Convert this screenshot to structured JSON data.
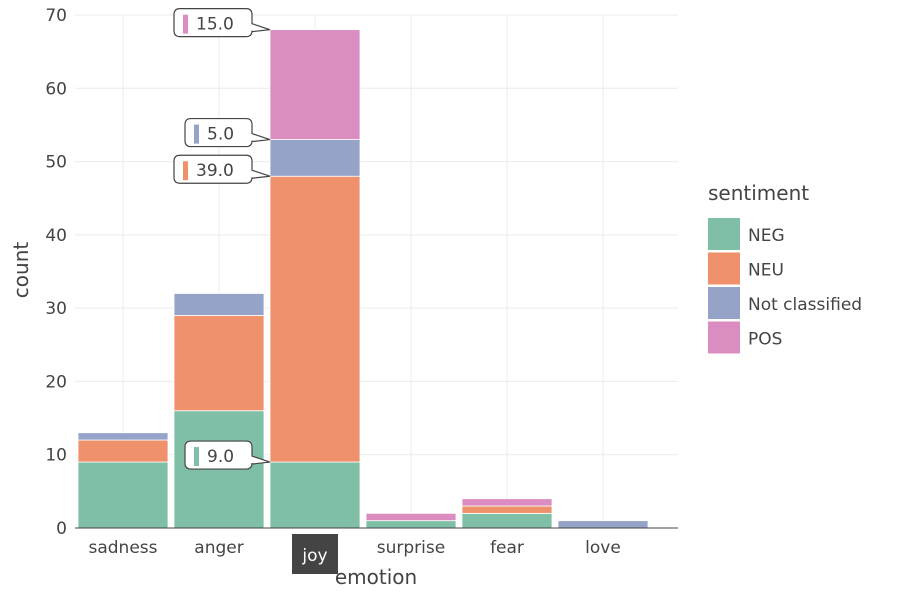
{
  "chart_data": {
    "type": "bar",
    "stacked": true,
    "categories": [
      "sadness",
      "anger",
      "joy",
      "surprise",
      "fear",
      "love"
    ],
    "series": [
      {
        "name": "NEG",
        "color": "#7fbfa6",
        "values": [
          9,
          16,
          9,
          1,
          2,
          0
        ]
      },
      {
        "name": "NEU",
        "color": "#ef916a",
        "values": [
          3,
          13,
          39,
          0,
          1,
          0
        ]
      },
      {
        "name": "Not classified",
        "color": "#95a3c9",
        "values": [
          1,
          3,
          5,
          0,
          0,
          1
        ]
      },
      {
        "name": "POS",
        "color": "#db8dc1",
        "values": [
          0,
          0,
          15,
          1,
          1,
          0
        ]
      }
    ],
    "xlabel": "emotion",
    "ylabel": "count",
    "ylim": [
      0,
      70
    ],
    "yticks": [
      0,
      10,
      20,
      30,
      40,
      50,
      60,
      70
    ],
    "grid": true,
    "legend": {
      "title": "sentiment",
      "position": "right"
    },
    "hover": {
      "category": "joy",
      "tooltips": [
        {
          "series": "POS",
          "text": "15.0"
        },
        {
          "series": "Not classified",
          "text": "5.0"
        },
        {
          "series": "NEU",
          "text": "39.0"
        },
        {
          "series": "NEG",
          "text": "9.0"
        }
      ]
    }
  }
}
